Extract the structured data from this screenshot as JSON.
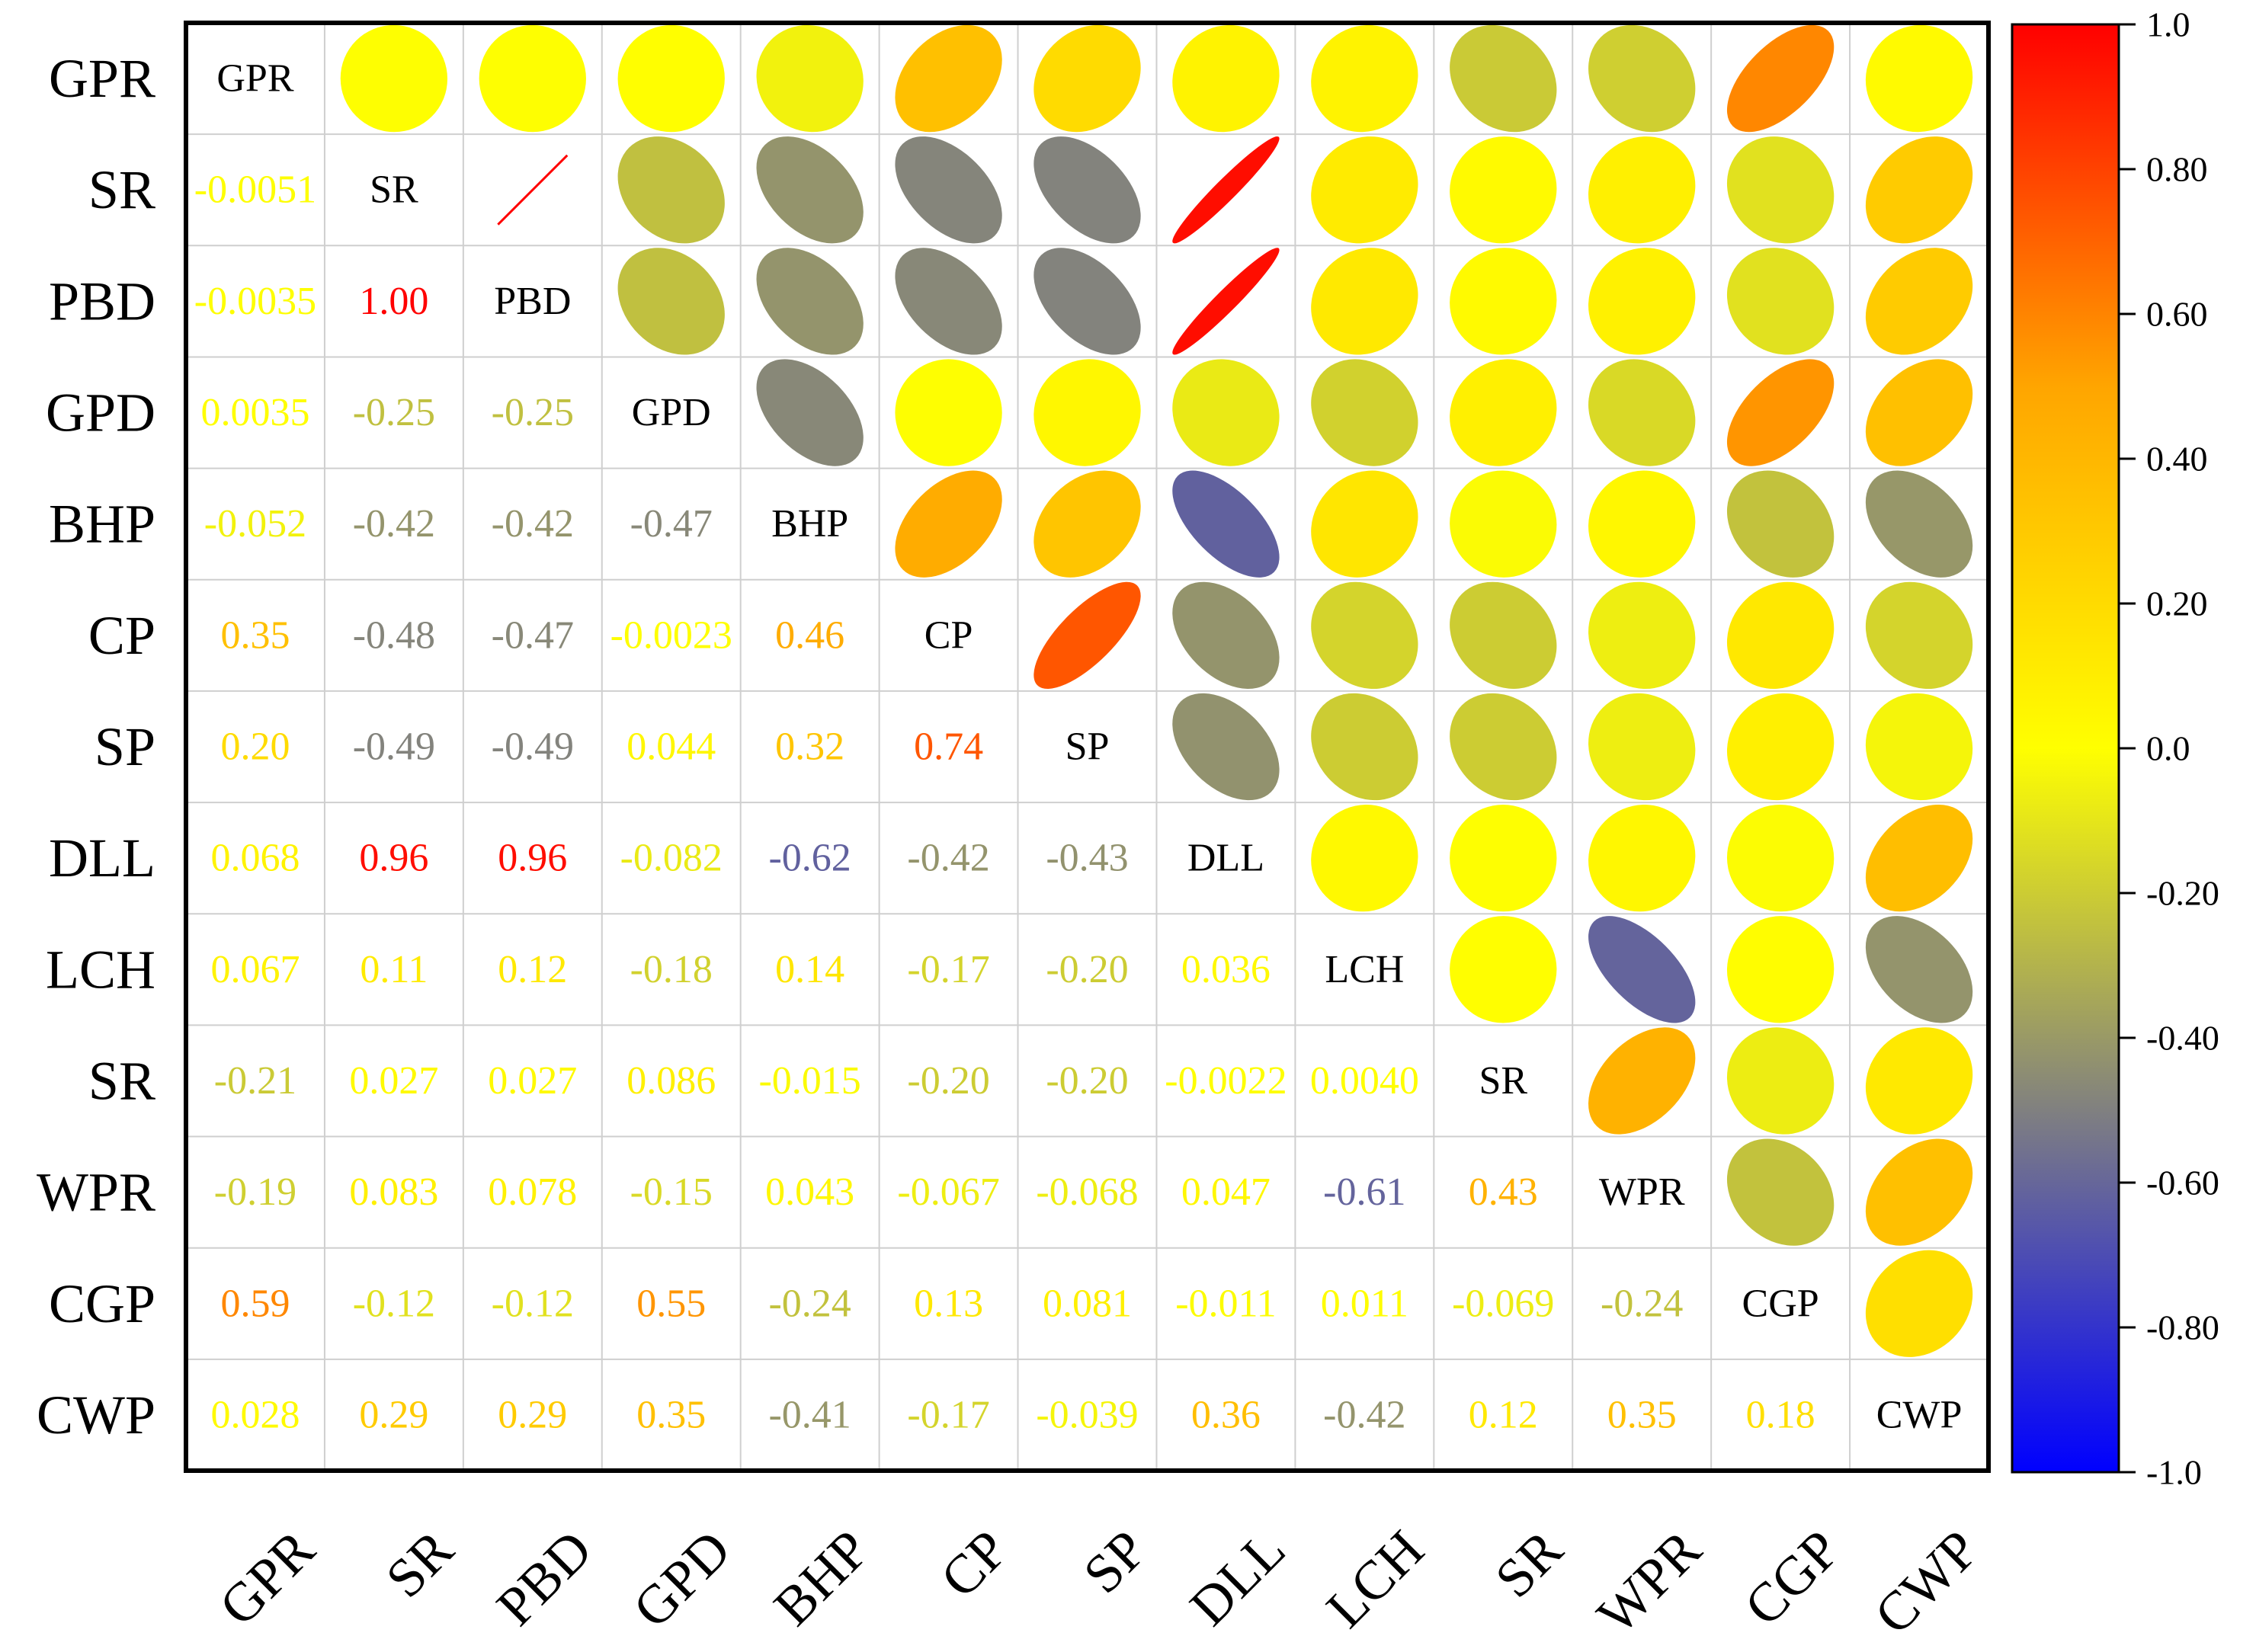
{
  "chart_data": {
    "type": "heatmap",
    "subtype": "correlation-matrix-ellipse",
    "variables": [
      "GPR",
      "SR",
      "PBD",
      "GPD",
      "BHP",
      "CP",
      "SP",
      "DLL",
      "LCH",
      "SR",
      "WPR",
      "CGP",
      "CWP"
    ],
    "matrix": [
      [
        1,
        -0.0051,
        -0.0035,
        0.0035,
        -0.052,
        0.35,
        0.2,
        0.068,
        0.067,
        -0.21,
        -0.19,
        0.59,
        0.028
      ],
      [
        -0.0051,
        1,
        1.0,
        -0.25,
        -0.42,
        -0.48,
        -0.49,
        0.96,
        0.11,
        0.027,
        0.083,
        -0.12,
        0.29
      ],
      [
        -0.0035,
        1.0,
        1,
        -0.25,
        -0.42,
        -0.47,
        -0.49,
        0.96,
        0.12,
        0.027,
        0.078,
        -0.12,
        0.29
      ],
      [
        0.0035,
        -0.25,
        -0.25,
        1,
        -0.47,
        -0.0023,
        0.044,
        -0.082,
        -0.18,
        0.086,
        -0.15,
        0.55,
        0.35
      ],
      [
        -0.052,
        -0.42,
        -0.42,
        -0.47,
        1,
        0.46,
        0.32,
        -0.62,
        0.14,
        -0.015,
        0.043,
        -0.24,
        -0.41
      ],
      [
        0.35,
        -0.48,
        -0.47,
        -0.0023,
        0.46,
        1,
        0.74,
        -0.42,
        -0.17,
        -0.2,
        -0.067,
        0.13,
        -0.17
      ],
      [
        0.2,
        -0.49,
        -0.49,
        0.044,
        0.32,
        0.74,
        1,
        -0.43,
        -0.2,
        -0.2,
        -0.068,
        0.081,
        -0.039
      ],
      [
        0.068,
        0.96,
        0.96,
        -0.082,
        -0.62,
        -0.42,
        -0.43,
        1,
        0.036,
        -0.0022,
        0.047,
        -0.011,
        0.36
      ],
      [
        0.067,
        0.11,
        0.12,
        -0.18,
        0.14,
        -0.17,
        -0.2,
        0.036,
        1,
        0.004,
        -0.61,
        0.011,
        -0.42
      ],
      [
        -0.21,
        0.027,
        0.027,
        0.086,
        -0.015,
        -0.2,
        -0.2,
        -0.0022,
        0.004,
        1,
        0.43,
        -0.069,
        0.12
      ],
      [
        -0.19,
        0.083,
        0.078,
        -0.15,
        0.043,
        -0.067,
        -0.068,
        0.047,
        -0.61,
        0.43,
        1,
        -0.24,
        0.35
      ],
      [
        0.59,
        -0.12,
        -0.12,
        0.55,
        -0.24,
        0.13,
        0.081,
        -0.011,
        0.011,
        -0.069,
        -0.24,
        1,
        0.18
      ],
      [
        0.028,
        0.29,
        0.29,
        0.35,
        -0.41,
        -0.17,
        -0.039,
        0.36,
        -0.42,
        0.12,
        0.35,
        0.18,
        1
      ]
    ],
    "lower_labels": [
      [
        "",
        "",
        "",
        "",
        "",
        "",
        "",
        "",
        "",
        "",
        "",
        "",
        ""
      ],
      [
        "-0.0051",
        "",
        "",
        "",
        "",
        "",
        "",
        "",
        "",
        "",
        "",
        "",
        ""
      ],
      [
        "-0.0035",
        "1.00",
        "",
        "",
        "",
        "",
        "",
        "",
        "",
        "",
        "",
        "",
        ""
      ],
      [
        "0.0035",
        "-0.25",
        "-0.25",
        "",
        "",
        "",
        "",
        "",
        "",
        "",
        "",
        "",
        ""
      ],
      [
        "-0.052",
        "-0.42",
        "-0.42",
        "-0.47",
        "",
        "",
        "",
        "",
        "",
        "",
        "",
        "",
        ""
      ],
      [
        "0.35",
        "-0.48",
        "-0.47",
        "-0.0023",
        "0.46",
        "",
        "",
        "",
        "",
        "",
        "",
        "",
        ""
      ],
      [
        "0.20",
        "-0.49",
        "-0.49",
        "0.044",
        "0.32",
        "0.74",
        "",
        "",
        "",
        "",
        "",
        "",
        ""
      ],
      [
        "0.068",
        "0.96",
        "0.96",
        "-0.082",
        "-0.62",
        "-0.42",
        "-0.43",
        "",
        "",
        "",
        "",
        "",
        ""
      ],
      [
        "0.067",
        "0.11",
        "0.12",
        "-0.18",
        "0.14",
        "-0.17",
        "-0.20",
        "0.036",
        "",
        "",
        "",
        "",
        ""
      ],
      [
        "-0.21",
        "0.027",
        "0.027",
        "0.086",
        "-0.015",
        "-0.20",
        "-0.20",
        "-0.0022",
        "0.0040",
        "",
        "",
        "",
        ""
      ],
      [
        "-0.19",
        "0.083",
        "0.078",
        "-0.15",
        "0.043",
        "-0.067",
        "-0.068",
        "0.047",
        "-0.61",
        "0.43",
        "",
        "",
        ""
      ],
      [
        "0.59",
        "-0.12",
        "-0.12",
        "0.55",
        "-0.24",
        "0.13",
        "0.081",
        "-0.011",
        "0.011",
        "-0.069",
        "-0.24",
        "",
        ""
      ],
      [
        "0.028",
        "0.29",
        "0.29",
        "0.35",
        "-0.41",
        "-0.17",
        "-0.039",
        "0.36",
        "-0.42",
        "0.12",
        "0.35",
        "0.18",
        ""
      ]
    ],
    "colorbar": {
      "range": [
        -1.0,
        1.0
      ],
      "tick_labels": [
        "1.0",
        "0.80",
        "0.60",
        "0.40",
        "0.20",
        "0.0",
        "-0.20",
        "-0.40",
        "-0.60",
        "-0.80",
        "-1.0"
      ],
      "colors": {
        "neg": "#0000ff",
        "mid_neg": "#808080",
        "zero": "#ffff00",
        "mid_pos": "#ffa500",
        "pos": "#ff0000"
      }
    },
    "x_tick_labels": [
      "GPR",
      "SR",
      "PBD",
      "GPD",
      "BHP",
      "CP",
      "SP",
      "DLL",
      "LCH",
      "SR",
      "WPR",
      "CGP",
      "CWP"
    ],
    "y_tick_labels": [
      "GPR",
      "SR",
      "PBD",
      "GPD",
      "BHP",
      "CP",
      "SP",
      "DLL",
      "LCH",
      "SR",
      "WPR",
      "CGP",
      "CWP"
    ],
    "title": "",
    "xlabel": "",
    "ylabel": ""
  }
}
